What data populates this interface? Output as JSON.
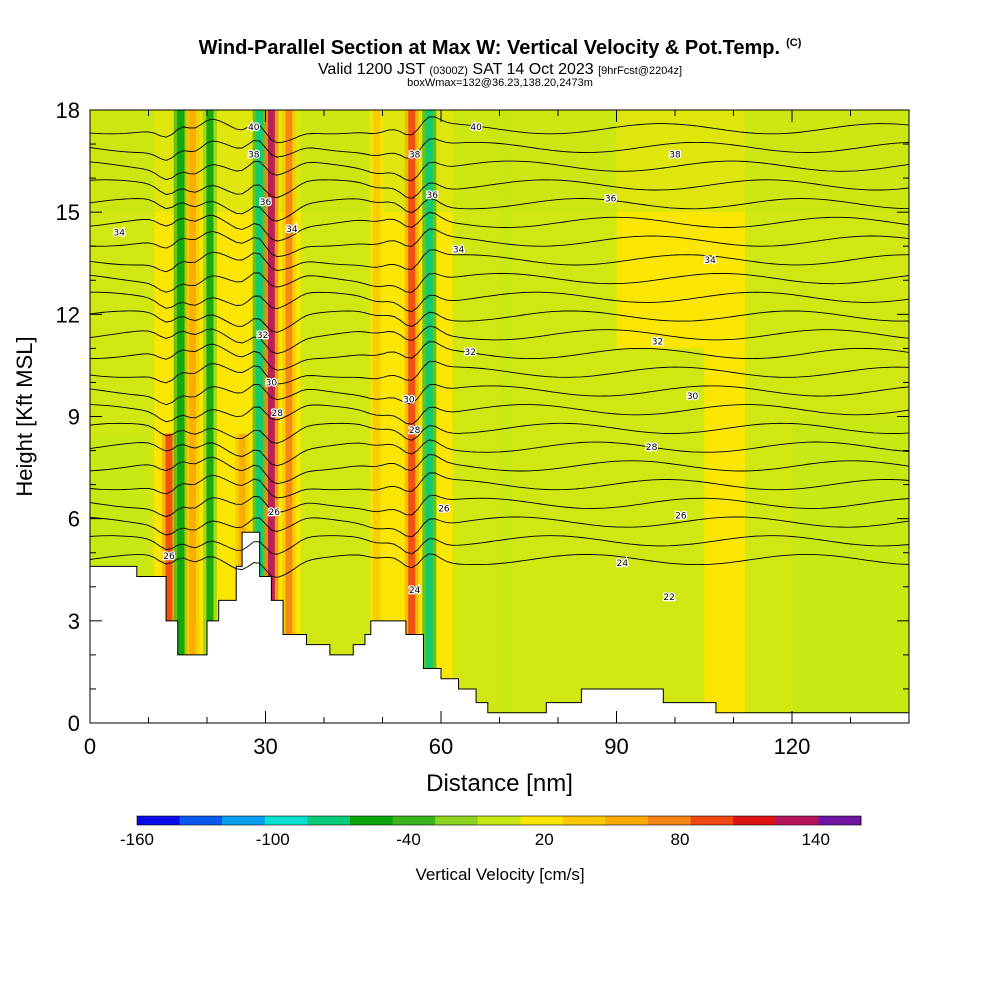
{
  "header": {
    "title": "Wind-Parallel Section at Max W: Vertical Velocity & Pot.Temp.",
    "copyright_mark": "(C)",
    "valid_a": "Valid 1200 JST",
    "valid_z": "(0300Z)",
    "valid_b": "SAT 14 Oct 2023",
    "fcst": "[9hrFcst@2204z]",
    "box_line": "boxWmax=132@36.23,138.20,2473m"
  },
  "chart_data": {
    "type": "heatmap",
    "xlabel": "Distance [nm]",
    "ylabel": "Height [Kft MSL]",
    "xlim": [
      0,
      140
    ],
    "ylim": [
      0,
      18
    ],
    "x_ticks": [
      0,
      30,
      60,
      90,
      120
    ],
    "y_ticks": [
      0,
      3,
      6,
      9,
      12,
      15,
      18
    ],
    "colorbar": {
      "label": "Vertical Velocity [cm/s]",
      "range": [
        -160,
        160
      ],
      "tick_values": [
        -160,
        -100,
        -40,
        20,
        80,
        140
      ],
      "colors": [
        "#0a0ae8",
        "#0a5af0",
        "#0aa0f0",
        "#0ae0d0",
        "#0acc78",
        "#0aa50a",
        "#3cb41e",
        "#8cd21e",
        "#c8e614",
        "#fae600",
        "#fac800",
        "#faaa00",
        "#f58214",
        "#f04614",
        "#dc1414",
        "#b4145a",
        "#6e14a0"
      ]
    },
    "series": [
      {
        "name": "Vertical Velocity",
        "features": [
          {
            "x": 13.5,
            "zmax": 8.5,
            "w": 100
          },
          {
            "x": 15.5,
            "zmax": 18,
            "w": -60
          },
          {
            "x": 17.5,
            "zmax": 18,
            "w": 60
          },
          {
            "x": 20.5,
            "zmax": 18,
            "w": -50
          },
          {
            "x": 26,
            "zmax": 8.5,
            "w": 60
          },
          {
            "x": 29,
            "zmax": 18,
            "w": -80
          },
          {
            "x": 31,
            "zmax": 18,
            "w": 132
          },
          {
            "x": 34,
            "zmax": 18,
            "w": 70
          },
          {
            "x": 49,
            "zmax": 18,
            "w": 30
          },
          {
            "x": 55,
            "zmax": 18,
            "w": 100
          },
          {
            "x": 58,
            "zmax": 18,
            "w": -80
          }
        ]
      },
      {
        "name": "Pot.Temp.",
        "contour_labels": [
          {
            "text": "40",
            "x": 28,
            "y": 17.5
          },
          {
            "text": "40",
            "x": 66,
            "y": 17.5
          },
          {
            "text": "38",
            "x": 28,
            "y": 16.7
          },
          {
            "text": "38",
            "x": 55.5,
            "y": 16.7
          },
          {
            "text": "38",
            "x": 100,
            "y": 16.7
          },
          {
            "text": "36",
            "x": 30,
            "y": 15.3
          },
          {
            "text": "36",
            "x": 58.5,
            "y": 15.5
          },
          {
            "text": "36",
            "x": 89,
            "y": 15.4
          },
          {
            "text": "34",
            "x": 5,
            "y": 14.4
          },
          {
            "text": "34",
            "x": 34.5,
            "y": 14.5
          },
          {
            "text": "34",
            "x": 63,
            "y": 13.9
          },
          {
            "text": "34",
            "x": 106,
            "y": 13.6
          },
          {
            "text": "32",
            "x": 29.5,
            "y": 11.4
          },
          {
            "text": "32",
            "x": 65,
            "y": 10.9
          },
          {
            "text": "32",
            "x": 97,
            "y": 11.2
          },
          {
            "text": "30",
            "x": 31,
            "y": 10.0
          },
          {
            "text": "30",
            "x": 54.5,
            "y": 9.5
          },
          {
            "text": "30",
            "x": 103,
            "y": 9.6
          },
          {
            "text": "28",
            "x": 32,
            "y": 9.1
          },
          {
            "text": "28",
            "x": 55.5,
            "y": 8.6
          },
          {
            "text": "28",
            "x": 96,
            "y": 8.1
          },
          {
            "text": "26",
            "x": 31.5,
            "y": 6.2
          },
          {
            "text": "26",
            "x": 60.5,
            "y": 6.3
          },
          {
            "text": "26",
            "x": 101,
            "y": 6.1
          },
          {
            "text": "26",
            "x": 13.5,
            "y": 4.9
          },
          {
            "text": "24",
            "x": 55.5,
            "y": 3.9
          },
          {
            "text": "24",
            "x": 91,
            "y": 4.7
          },
          {
            "text": "22",
            "x": 99,
            "y": 3.7
          }
        ]
      }
    ],
    "terrain": [
      [
        0,
        4.6
      ],
      [
        8,
        4.6
      ],
      [
        8,
        4.3
      ],
      [
        13,
        4.3
      ],
      [
        13,
        3.0
      ],
      [
        15,
        3.0
      ],
      [
        15,
        2.0
      ],
      [
        20,
        2.0
      ],
      [
        20,
        3.0
      ],
      [
        22,
        3.0
      ],
      [
        22,
        3.6
      ],
      [
        25,
        3.6
      ],
      [
        25,
        4.6
      ],
      [
        26,
        4.6
      ],
      [
        26,
        5.6
      ],
      [
        29,
        5.6
      ],
      [
        29,
        4.3
      ],
      [
        31,
        4.3
      ],
      [
        31,
        3.6
      ],
      [
        33,
        3.6
      ],
      [
        33,
        2.6
      ],
      [
        37,
        2.6
      ],
      [
        37,
        2.3
      ],
      [
        41,
        2.3
      ],
      [
        41,
        2.0
      ],
      [
        45,
        2.0
      ],
      [
        45,
        2.3
      ],
      [
        47,
        2.3
      ],
      [
        47,
        2.6
      ],
      [
        48,
        2.6
      ],
      [
        48,
        3.0
      ],
      [
        54,
        3.0
      ],
      [
        54,
        2.6
      ],
      [
        57,
        2.6
      ],
      [
        57,
        1.6
      ],
      [
        60,
        1.6
      ],
      [
        60,
        1.3
      ],
      [
        63,
        1.3
      ],
      [
        63,
        1.0
      ],
      [
        66,
        1.0
      ],
      [
        66,
        0.6
      ],
      [
        68,
        0.6
      ],
      [
        68,
        0.3
      ],
      [
        78,
        0.3
      ],
      [
        78,
        0.6
      ],
      [
        84,
        0.6
      ],
      [
        84,
        1.0
      ],
      [
        98,
        1.0
      ],
      [
        98,
        0.6
      ],
      [
        107,
        0.6
      ],
      [
        107,
        0.3
      ],
      [
        140,
        0.3
      ]
    ]
  }
}
